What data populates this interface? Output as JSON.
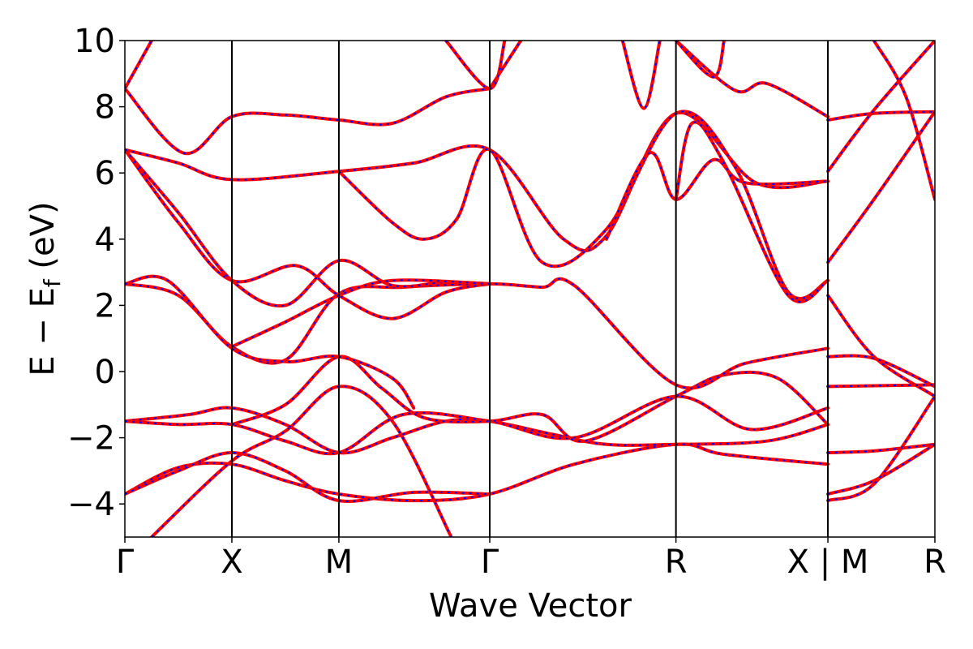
{
  "chart_data": {
    "type": "line",
    "xlabel": "Wave Vector",
    "ylabel": {
      "main": "E − E",
      "sub": "f",
      "unit": " (eV)"
    },
    "ylim": [
      -5,
      10
    ],
    "yticks": [
      {
        "value": 10,
        "label": "10"
      },
      {
        "value": 8,
        "label": "8"
      },
      {
        "value": 6,
        "label": "6"
      },
      {
        "value": 4,
        "label": "4"
      },
      {
        "value": 2,
        "label": "2"
      },
      {
        "value": 0,
        "label": "0"
      },
      {
        "value": -2,
        "label": "−2"
      },
      {
        "value": -4,
        "label": "−4"
      }
    ],
    "kpath": [
      {
        "label": "Γ",
        "x": 0.0
      },
      {
        "label": "X",
        "x": 1.0
      },
      {
        "label": "M",
        "x": 2.0
      },
      {
        "label": "Γ",
        "x": 3.41
      },
      {
        "label": "R",
        "x": 5.15
      },
      {
        "label": "X | M",
        "x": 6.57
      },
      {
        "label": "R",
        "x": 7.57
      }
    ],
    "xlim": [
      0.0,
      7.57
    ],
    "grid": false,
    "legend": "none",
    "colors": {
      "band_outer": "#ff0000",
      "band_inner": "#0000ff",
      "kline": "#000000"
    },
    "series": [
      {
        "values": [
          [
            0,
            -3.7
          ],
          [
            0.5,
            -2.9
          ],
          [
            1,
            -2.8
          ],
          [
            1.5,
            -3.3
          ],
          [
            2,
            -3.7
          ],
          [
            2.7,
            -3.9
          ],
          [
            3.41,
            -3.7
          ],
          [
            4.2,
            -2.8
          ],
          [
            5.15,
            -2.2
          ],
          [
            5.6,
            -2.5
          ],
          [
            6.57,
            -2.8
          ]
        ]
      },
      {
        "values": [
          [
            0,
            -3.7
          ],
          [
            0.5,
            -3.0
          ],
          [
            1,
            -2.45
          ],
          [
            1.5,
            -3.0
          ],
          [
            2,
            -3.9
          ],
          [
            2.7,
            -3.65
          ],
          [
            3.41,
            -3.7
          ]
        ]
      },
      {
        "values": [
          [
            0.25,
            -5.0
          ],
          [
            1,
            -2.7
          ],
          [
            1.5,
            -1.8
          ],
          [
            2,
            -0.45
          ],
          [
            2.5,
            -1.5
          ],
          [
            3.05,
            -5.0
          ]
        ]
      },
      {
        "values": [
          [
            0,
            -1.5
          ],
          [
            0.6,
            -1.3
          ],
          [
            1,
            -1.1
          ],
          [
            1.5,
            -1.6
          ],
          [
            2,
            -2.45
          ],
          [
            2.5,
            -2.0
          ],
          [
            3.0,
            -1.5
          ],
          [
            3.41,
            -1.5
          ],
          [
            4.0,
            -1.9
          ],
          [
            4.5,
            -2.2
          ],
          [
            5.15,
            -2.2
          ],
          [
            6.0,
            -2.1
          ],
          [
            6.57,
            -1.6
          ]
        ]
      },
      {
        "values": [
          [
            0,
            -1.5
          ],
          [
            0.5,
            -1.6
          ],
          [
            1,
            -1.6
          ],
          [
            1.5,
            -2.1
          ],
          [
            2,
            -2.45
          ],
          [
            2.6,
            -1.3
          ],
          [
            3.41,
            -1.5
          ],
          [
            4.2,
            -2.0
          ],
          [
            5.15,
            -0.75
          ],
          [
            5.85,
            -1.75
          ],
          [
            6.57,
            -1.1
          ]
        ]
      },
      {
        "values": [
          [
            1,
            -1.6
          ],
          [
            1.5,
            -1.0
          ],
          [
            2,
            0.45
          ],
          [
            2.4,
            -0.5
          ],
          [
            2.8,
            -1.4
          ],
          [
            3.41,
            -1.5
          ],
          [
            3.9,
            -1.3
          ],
          [
            4.3,
            -2.1
          ],
          [
            5.15,
            -0.75
          ],
          [
            5.6,
            -0.1
          ],
          [
            6.1,
            -0.2
          ],
          [
            6.57,
            -1.6
          ]
        ]
      },
      {
        "values": [
          [
            0,
            2.65
          ],
          [
            0.5,
            2.3
          ],
          [
            1,
            0.75
          ],
          [
            1.5,
            0.35
          ],
          [
            2,
            2.35
          ],
          [
            2.6,
            2.55
          ],
          [
            3.41,
            2.65
          ],
          [
            3.9,
            2.55
          ],
          [
            4.2,
            2.6
          ],
          [
            5.15,
            -0.4
          ],
          [
            5.8,
            0.25
          ],
          [
            6.57,
            0.7
          ]
        ]
      },
      {
        "values": [
          [
            0,
            2.65
          ],
          [
            0.4,
            2.75
          ],
          [
            1,
            0.7
          ],
          [
            1.5,
            0.3
          ],
          [
            2,
            0.45
          ],
          [
            2.5,
            -0.2
          ],
          [
            2.7,
            -1.1
          ]
        ]
      },
      {
        "values": [
          [
            0,
            6.7
          ],
          [
            0.5,
            4.5
          ],
          [
            1,
            2.75
          ],
          [
            1.6,
            3.2
          ],
          [
            2,
            2.3
          ],
          [
            2.5,
            1.6
          ],
          [
            3.0,
            2.4
          ],
          [
            3.41,
            2.65
          ]
        ]
      },
      {
        "values": [
          [
            0,
            6.7
          ],
          [
            0.5,
            4.8
          ],
          [
            1,
            2.75
          ],
          [
            1.5,
            2.0
          ],
          [
            2,
            3.35
          ],
          [
            2.5,
            2.6
          ],
          [
            3.0,
            2.7
          ],
          [
            3.41,
            2.65
          ]
        ]
      },
      {
        "values": [
          [
            1,
            0.75
          ],
          [
            1.5,
            1.5
          ],
          [
            2,
            2.3
          ],
          [
            2.5,
            2.75
          ],
          [
            3.41,
            2.65
          ]
        ]
      },
      {
        "values": [
          [
            0,
            6.7
          ],
          [
            0.5,
            6.3
          ],
          [
            1,
            5.8
          ],
          [
            2,
            6.05
          ],
          [
            2.7,
            6.3
          ],
          [
            3.41,
            6.7
          ],
          [
            4.1,
            4.0
          ],
          [
            4.5,
            4.1
          ],
          [
            5.15,
            7.8
          ],
          [
            5.9,
            5.7
          ],
          [
            6.57,
            5.75
          ]
        ]
      },
      {
        "values": [
          [
            2,
            6.05
          ],
          [
            2.5,
            4.5
          ],
          [
            2.8,
            4.0
          ],
          [
            3.1,
            4.6
          ],
          [
            3.41,
            6.7
          ],
          [
            3.9,
            3.3
          ],
          [
            4.5,
            4.3
          ],
          [
            5.15,
            7.8
          ],
          [
            5.7,
            6.2
          ],
          [
            6.2,
            2.4
          ],
          [
            6.57,
            2.75
          ]
        ]
      },
      {
        "values": [
          [
            0,
            8.55
          ],
          [
            0.55,
            6.6
          ],
          [
            1,
            7.7
          ],
          [
            1.5,
            7.75
          ],
          [
            2,
            7.6
          ],
          [
            2.5,
            7.5
          ],
          [
            3.0,
            8.3
          ],
          [
            3.41,
            8.55
          ]
        ]
      },
      {
        "values": [
          [
            0,
            8.55
          ],
          [
            0.25,
            10.0
          ]
        ]
      },
      {
        "values": [
          [
            3.41,
            8.55
          ],
          [
            3.7,
            10.0
          ]
        ]
      },
      {
        "values": [
          [
            3.0,
            10.0
          ],
          [
            3.41,
            8.55
          ],
          [
            3.55,
            10.0
          ]
        ]
      },
      {
        "values": [
          [
            4.65,
            10.0
          ],
          [
            4.85,
            7.95
          ],
          [
            5.0,
            10.0
          ]
        ]
      },
      {
        "values": [
          [
            4.5,
            4.0
          ],
          [
            4.9,
            6.6
          ],
          [
            5.15,
            5.2
          ],
          [
            5.5,
            6.4
          ],
          [
            5.8,
            5.7
          ],
          [
            6.57,
            5.75
          ]
        ]
      },
      {
        "values": [
          [
            5.15,
            10.0
          ],
          [
            5.7,
            8.5
          ],
          [
            6.0,
            8.7
          ],
          [
            6.57,
            7.7
          ]
        ]
      },
      {
        "values": [
          [
            5.15,
            5.2
          ],
          [
            5.3,
            7.5
          ],
          [
            5.6,
            6.3
          ],
          [
            6.2,
            2.3
          ],
          [
            6.57,
            2.75
          ]
        ]
      },
      {
        "values": [
          [
            5.15,
            10.0
          ],
          [
            5.5,
            8.9
          ],
          [
            5.6,
            10.0
          ]
        ]
      },
      {
        "values": [
          [
            6.57,
            7.6
          ],
          [
            7.0,
            7.8
          ],
          [
            7.57,
            7.85
          ]
        ]
      },
      {
        "values": [
          [
            6.57,
            6.05
          ],
          [
            7.0,
            7.9
          ],
          [
            7.57,
            10.0
          ]
        ]
      },
      {
        "values": [
          [
            6.57,
            3.3
          ],
          [
            7.0,
            5.2
          ],
          [
            7.57,
            7.85
          ]
        ]
      },
      {
        "values": [
          [
            6.57,
            2.3
          ],
          [
            7.0,
            0.45
          ],
          [
            7.57,
            -0.75
          ]
        ]
      },
      {
        "values": [
          [
            6.57,
            0.45
          ],
          [
            7.0,
            0.4
          ],
          [
            7.57,
            -0.45
          ]
        ]
      },
      {
        "values": [
          [
            6.57,
            -0.45
          ],
          [
            7.57,
            -0.4
          ]
        ]
      },
      {
        "values": [
          [
            6.57,
            -2.45
          ],
          [
            7.0,
            -2.4
          ],
          [
            7.57,
            -2.2
          ]
        ]
      },
      {
        "values": [
          [
            6.57,
            -3.7
          ],
          [
            7.0,
            -3.3
          ],
          [
            7.57,
            -2.2
          ]
        ]
      },
      {
        "values": [
          [
            6.57,
            -3.9
          ],
          [
            7.0,
            -3.4
          ],
          [
            7.57,
            -0.75
          ]
        ]
      },
      {
        "values": [
          [
            7.0,
            10.0
          ],
          [
            7.3,
            8.3
          ],
          [
            7.57,
            5.2
          ]
        ]
      }
    ]
  }
}
